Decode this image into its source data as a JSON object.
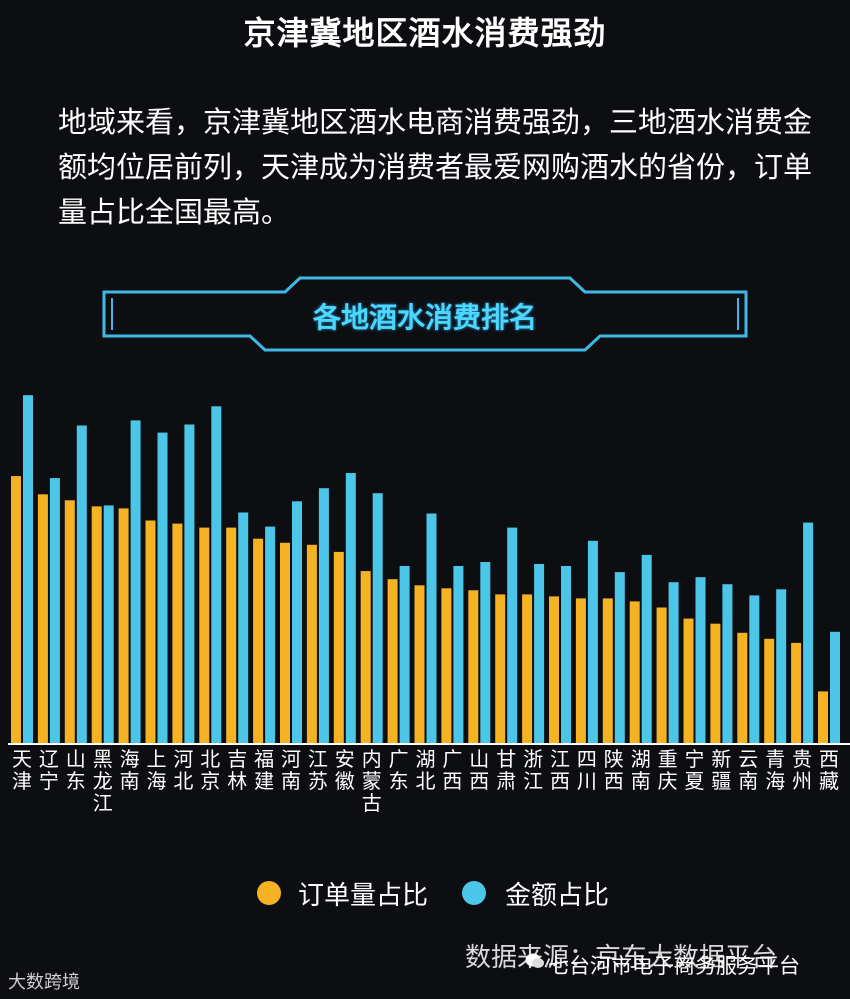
{
  "title": "京津冀地区酒水消费强劲",
  "intro": "地域来看，京津冀地区酒水电商消费强劲，三地酒水消费金额均位居前列，天津成为消费者最爱网购酒水的省份，订单量占比全国最高。",
  "banner": "各地酒水消费排名",
  "source": "数据来源：京东大数据平台",
  "footer_left": "大数跨境",
  "footer_right": "七台河市电子商务服务平台",
  "colors": {
    "orders": "#f5b323",
    "amount": "#4cc6e8",
    "banner": "#3fb8e6"
  },
  "chart_data": {
    "type": "bar",
    "categories": [
      "天津",
      "辽宁",
      "山东",
      "黑龙江",
      "海南",
      "上海",
      "河北",
      "北京",
      "吉林",
      "福建",
      "河南",
      "江苏",
      "安徽",
      "内蒙古",
      "广东",
      "湖北",
      "广西",
      "山西",
      "甘肃",
      "浙江",
      "江西",
      "四川",
      "陕西",
      "湖南",
      "重庆",
      "宁夏",
      "新疆",
      "云南",
      "青海",
      "贵州",
      "西藏"
    ],
    "series": [
      {
        "name": "订单量占比",
        "values": [
          265,
          247,
          241,
          235,
          233,
          221,
          218,
          214,
          214,
          203,
          199,
          197,
          190,
          171,
          163,
          157,
          154,
          152,
          148,
          148,
          146,
          144,
          144,
          141,
          135,
          124,
          119,
          110,
          104,
          100,
          52
        ]
      },
      {
        "name": "金额占比",
        "values": [
          345,
          263,
          315,
          236,
          320,
          308,
          316,
          334,
          229,
          215,
          240,
          253,
          268,
          248,
          176,
          228,
          176,
          180,
          214,
          178,
          176,
          201,
          170,
          187,
          160,
          165,
          158,
          147,
          153,
          219,
          111
        ]
      }
    ],
    "ylim": [
      0,
      360
    ],
    "legend": "bottom"
  }
}
